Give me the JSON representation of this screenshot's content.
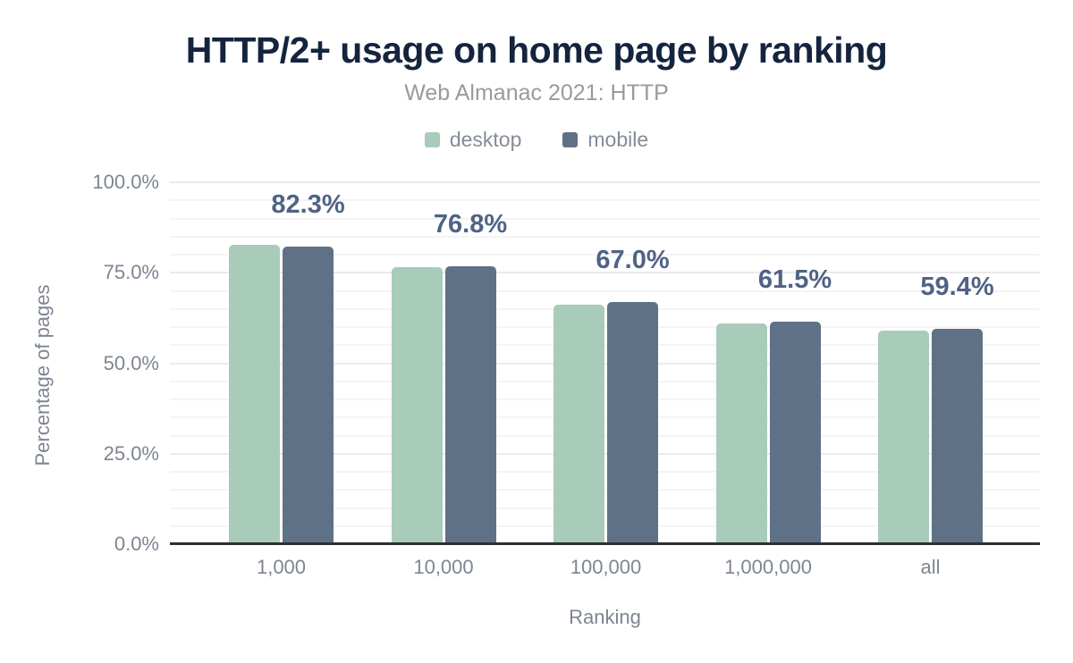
{
  "chart_data": {
    "type": "bar",
    "title": "HTTP/2+ usage on home page by ranking",
    "subtitle": "Web Almanac 2021: HTTP",
    "categories": [
      "1,000",
      "10,000",
      "100,000",
      "1,000,000",
      "all"
    ],
    "series": [
      {
        "name": "desktop",
        "color": "#a9cbb9",
        "values": [
          82.8,
          76.5,
          66.2,
          61.0,
          59.0
        ]
      },
      {
        "name": "mobile",
        "color": "#5f7186",
        "values": [
          82.3,
          76.8,
          67.0,
          61.5,
          59.4
        ]
      }
    ],
    "value_labels": {
      "series": "mobile",
      "texts": [
        "82.3%",
        "76.8%",
        "67.0%",
        "61.5%",
        "59.4%"
      ]
    },
    "xlabel": "Ranking",
    "ylabel": "Percentage of pages",
    "ylim": [
      0,
      100
    ],
    "y_tick_labels": [
      "0.0%",
      "25.0%",
      "50.0%",
      "75.0%",
      "100.0%"
    ],
    "y_major_step": 25,
    "y_minor_step": 5,
    "grid": "horizontal",
    "legend_position": "top-center"
  },
  "colors": {
    "background": "#ffffff",
    "title": "#15243e",
    "subtitle": "#9a9a9a",
    "legend_text": "#858c98",
    "tick_text": "#7e8591",
    "value_label": "#4e6386",
    "axis_line": "#2d2f31",
    "gridline_minor": "#f4f4f4",
    "gridline_major": "#ebebeb",
    "desktop_bar": "#a9cbb9",
    "mobile_bar": "#5f7186"
  }
}
